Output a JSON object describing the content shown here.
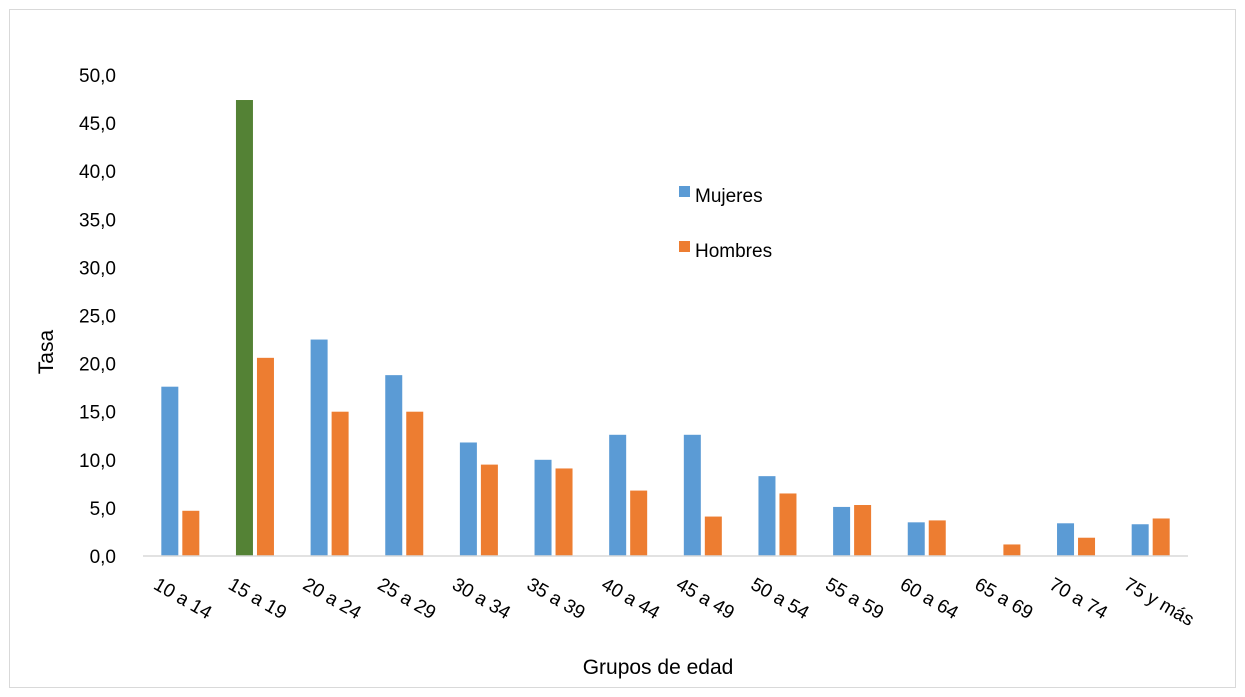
{
  "chart_data": {
    "type": "bar",
    "title": "",
    "xlabel": "Grupos de edad",
    "ylabel": "Tasa",
    "ylim": [
      0,
      50
    ],
    "ytick_step": 5,
    "ytick_labels": [
      "0,0",
      "5,0",
      "10,0",
      "15,0",
      "20,0",
      "25,0",
      "30,0",
      "35,0",
      "40,0",
      "45,0",
      "50,0"
    ],
    "grid": false,
    "legend_position": "upper-right-center",
    "categories": [
      "10 a 14",
      "15 a 19",
      "20 a 24",
      "25 a 29",
      "30 a 34",
      "35 a 39",
      "40 a 44",
      "45 a 49",
      "50 a 54",
      "55 a 59",
      "60 a 64",
      "65 a 69",
      "70 a 74",
      "75 y más"
    ],
    "series": [
      {
        "name": "Mujeres",
        "color": "#5b9bd5",
        "highlight": {
          "index": 1,
          "color": "#548235"
        },
        "values": [
          17.6,
          47.4,
          22.5,
          18.8,
          11.8,
          10.0,
          12.6,
          12.6,
          8.3,
          5.1,
          3.5,
          0,
          3.4,
          3.3
        ]
      },
      {
        "name": "Hombres",
        "color": "#ed7d31",
        "values": [
          4.7,
          20.6,
          15.0,
          15.0,
          9.5,
          9.1,
          6.8,
          4.1,
          6.5,
          5.3,
          3.7,
          1.2,
          1.9,
          3.9
        ]
      }
    ]
  }
}
